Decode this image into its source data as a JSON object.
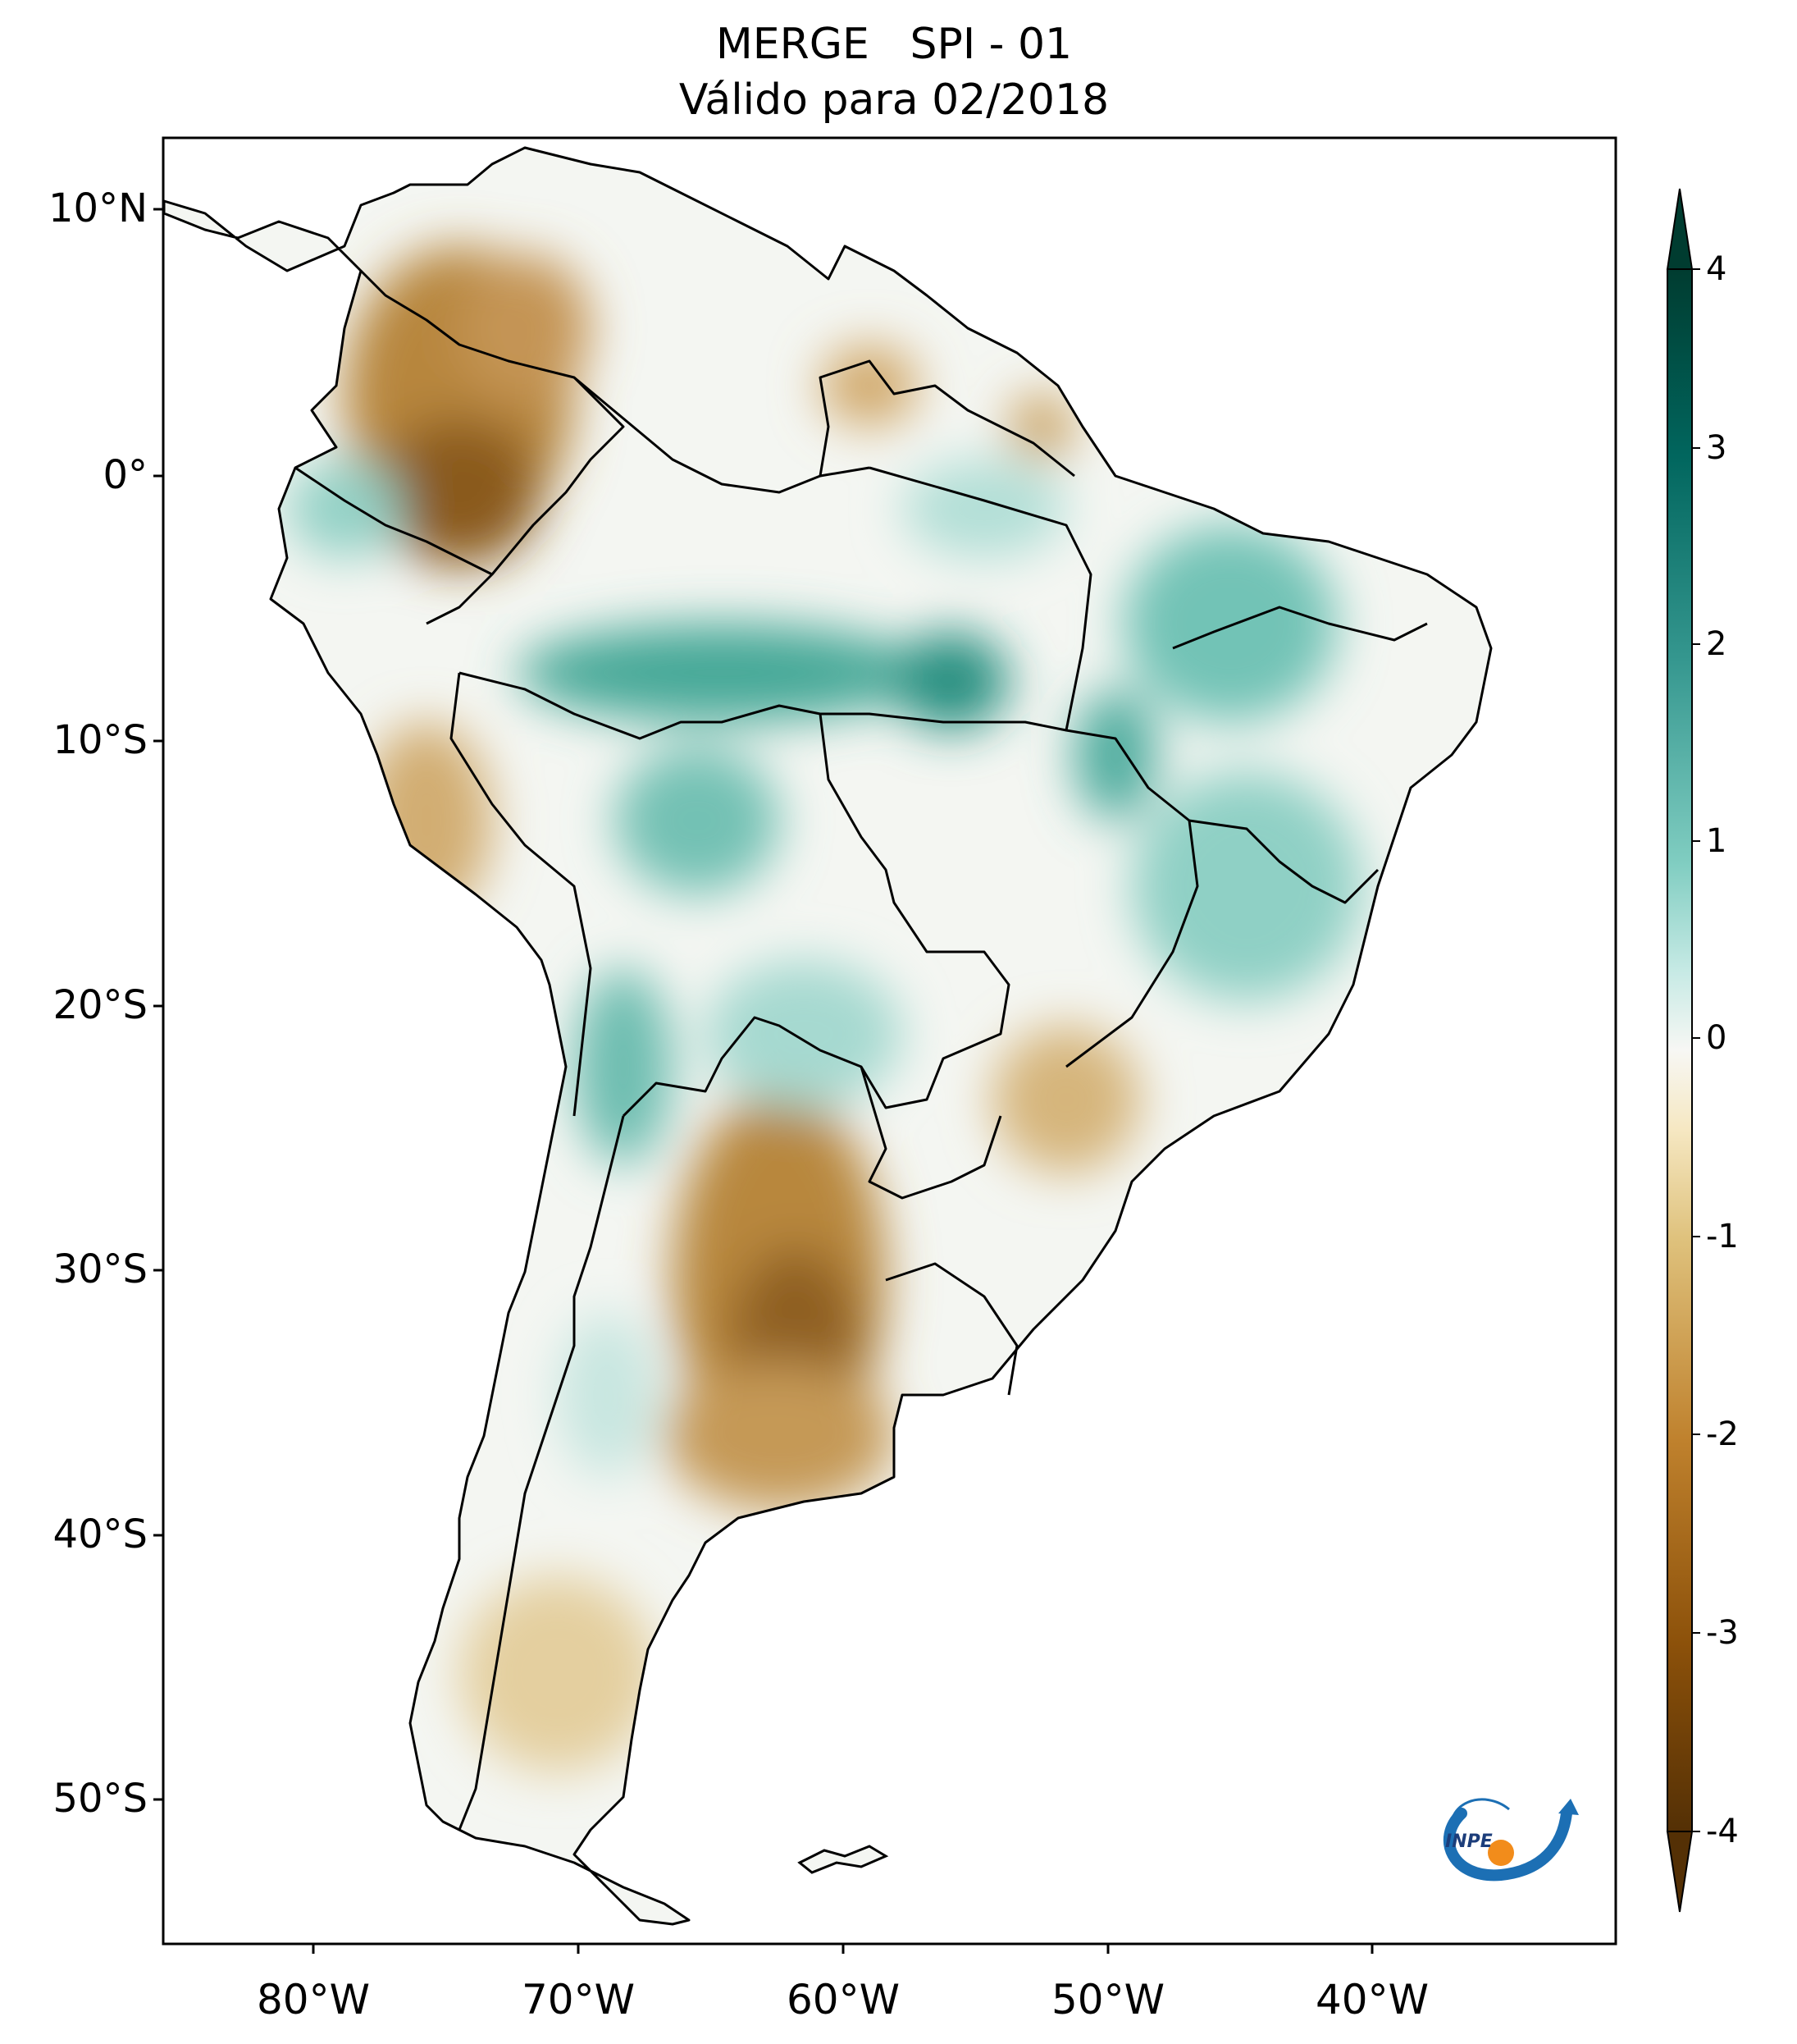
{
  "title": {
    "line1": "MERGE   SPI - 01",
    "line2": "Válido para 02/2018"
  },
  "map": {
    "region": "South America",
    "variable": "SPI",
    "latitude_labels": [
      "10°N",
      "0°",
      "10°S",
      "20°S",
      "30°S",
      "40°S",
      "50°S"
    ],
    "longitude_labels": [
      "80°W",
      "70°W",
      "60°W",
      "50°W",
      "40°W"
    ]
  },
  "colorbar": {
    "ticks": [
      "4",
      "3",
      "2",
      "1",
      "0",
      "-1",
      "-2",
      "-3",
      "-4"
    ],
    "range": [
      -4,
      4
    ],
    "colors": {
      "dry_extreme": "#5a3305",
      "dry": "#b67d2f",
      "dry_light": "#e8d3a3",
      "neutral": "#f7f7f4",
      "wet_light": "#b8e3dc",
      "wet": "#3aa496",
      "wet_extreme": "#0b4b3e"
    }
  },
  "logo": {
    "text": "INPE"
  }
}
